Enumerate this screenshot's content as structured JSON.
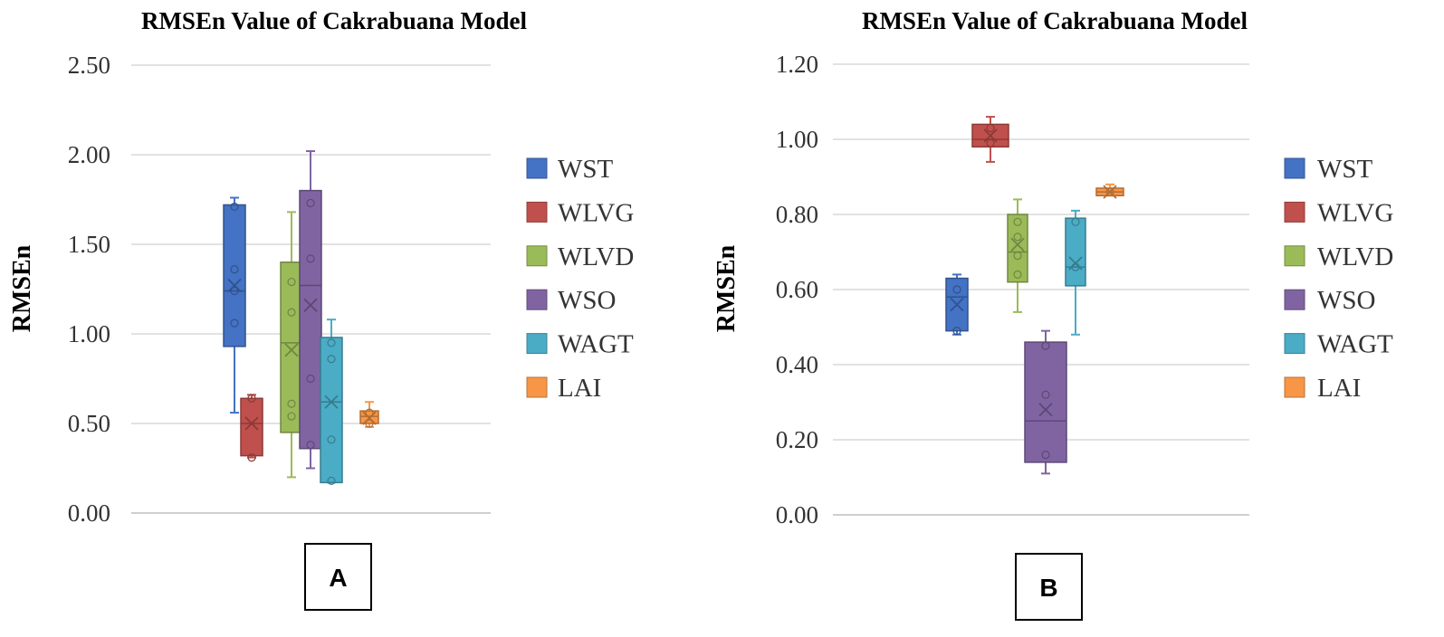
{
  "chart_data": [
    {
      "type": "box",
      "title": "RMSEn Value of Cakrabuana Model",
      "xlabel": "",
      "ylabel": "RMSEn",
      "ylim": [
        0,
        2.5
      ],
      "yticks": [
        "0.00",
        "0.50",
        "1.00",
        "1.50",
        "2.00",
        "2.50"
      ],
      "panel_label": "A",
      "legend_position": "right",
      "series": [
        {
          "name": "WST",
          "color": "#4472C4",
          "min": 0.56,
          "q1": 0.93,
          "median": 1.24,
          "q3": 1.72,
          "max": 1.76,
          "mean": 1.27,
          "points": [
            1.06,
            1.24,
            1.36,
            1.71
          ]
        },
        {
          "name": "WLVG",
          "color": "#C0504D",
          "min": 0.31,
          "q1": 0.32,
          "median": 0.5,
          "q3": 0.64,
          "max": 0.66,
          "mean": 0.5,
          "points": [
            0.31,
            0.64
          ]
        },
        {
          "name": "WLVD",
          "color": "#9BBB59",
          "min": 0.2,
          "q1": 0.45,
          "median": 0.95,
          "q3": 1.4,
          "max": 1.68,
          "mean": 0.91,
          "points": [
            0.54,
            0.61,
            1.12,
            1.29
          ]
        },
        {
          "name": "WSO",
          "color": "#8064A2",
          "min": 0.25,
          "q1": 0.36,
          "median": 1.27,
          "q3": 1.8,
          "max": 2.02,
          "mean": 1.16,
          "points": [
            0.38,
            0.75,
            1.42,
            1.73
          ]
        },
        {
          "name": "WAGT",
          "color": "#4BACC6",
          "min": 0.17,
          "q1": 0.17,
          "median": 0.62,
          "q3": 0.98,
          "max": 1.08,
          "mean": 0.62,
          "points": [
            0.18,
            0.41,
            0.86,
            0.95
          ]
        },
        {
          "name": "LAI",
          "color": "#F79646",
          "min": 0.48,
          "q1": 0.5,
          "median": 0.54,
          "q3": 0.57,
          "max": 0.62,
          "mean": 0.53,
          "points": [
            0.5,
            0.56
          ]
        }
      ]
    },
    {
      "type": "box",
      "title": "RMSEn Value of Cakrabuana Model",
      "xlabel": "",
      "ylabel": "RMSEn",
      "ylim": [
        0,
        1.2
      ],
      "yticks": [
        "0.00",
        "0.20",
        "0.40",
        "0.60",
        "0.80",
        "1.00",
        "1.20"
      ],
      "panel_label": "B",
      "legend_position": "right",
      "series": [
        {
          "name": "WST",
          "color": "#4472C4",
          "min": 0.48,
          "q1": 0.49,
          "median": 0.58,
          "q3": 0.63,
          "max": 0.64,
          "mean": 0.56,
          "points": [
            0.49,
            0.6
          ]
        },
        {
          "name": "WLVG",
          "color": "#C0504D",
          "min": 0.94,
          "q1": 0.98,
          "median": 1.0,
          "q3": 1.04,
          "max": 1.06,
          "mean": 1.01,
          "points": [
            0.99,
            1.03
          ]
        },
        {
          "name": "WLVD",
          "color": "#9BBB59",
          "min": 0.54,
          "q1": 0.62,
          "median": 0.7,
          "q3": 0.8,
          "max": 0.84,
          "mean": 0.72,
          "points": [
            0.64,
            0.69,
            0.74,
            0.78
          ]
        },
        {
          "name": "WSO",
          "color": "#8064A2",
          "min": 0.11,
          "q1": 0.14,
          "median": 0.25,
          "q3": 0.46,
          "max": 0.49,
          "mean": 0.28,
          "points": [
            0.16,
            0.32,
            0.45
          ]
        },
        {
          "name": "WAGT",
          "color": "#4BACC6",
          "min": 0.48,
          "q1": 0.61,
          "median": 0.66,
          "q3": 0.79,
          "max": 0.81,
          "mean": 0.67,
          "points": [
            0.66,
            0.78
          ]
        },
        {
          "name": "LAI",
          "color": "#F79646",
          "min": 0.85,
          "q1": 0.85,
          "median": 0.86,
          "q3": 0.87,
          "max": 0.88,
          "mean": 0.86,
          "points": [
            0.86
          ]
        }
      ]
    }
  ]
}
